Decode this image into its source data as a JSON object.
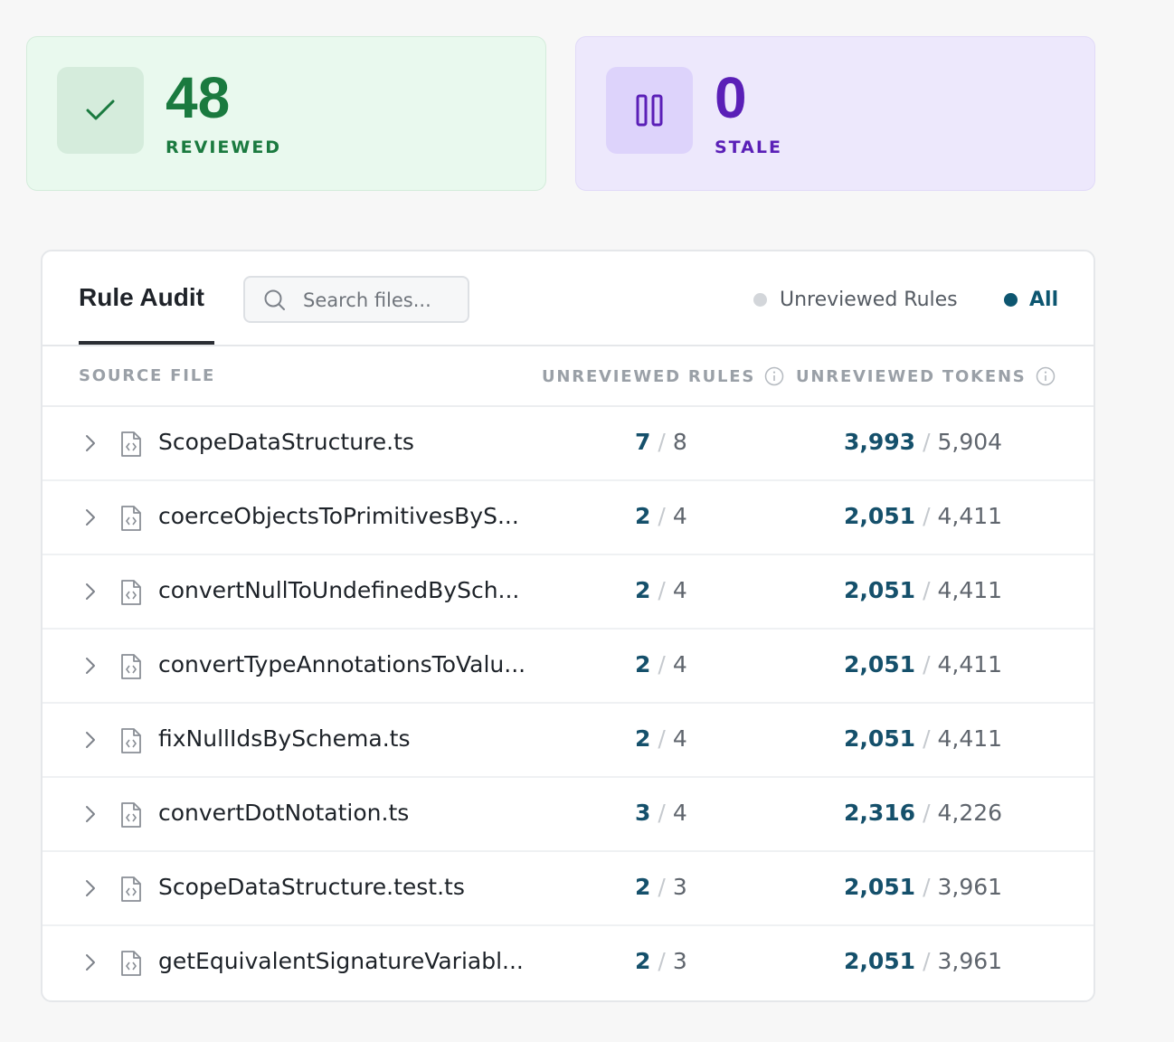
{
  "stats": {
    "reviewed": {
      "value": "48",
      "label": "REVIEWED",
      "icon": "check-icon",
      "color": "#1a7a3f"
    },
    "stale": {
      "value": "0",
      "label": "STALE",
      "icon": "pause-icon",
      "color": "#5a1fb7"
    }
  },
  "audit": {
    "tab_title": "Rule Audit",
    "search": {
      "placeholder": "Search files...",
      "value": ""
    },
    "filters": {
      "unreviewed": {
        "label": "Unreviewed Rules",
        "active": false
      },
      "all": {
        "label": "All",
        "active": true
      }
    },
    "columns": {
      "source": "SOURCE FILE",
      "rules": "UNREVIEWED RULES",
      "tokens": "UNREVIEWED TOKENS"
    },
    "rows": [
      {
        "file": "ScopeDataStructure.ts",
        "rules": "7",
        "rules_total": "8",
        "tokens": "3,993",
        "tokens_total": "5,904"
      },
      {
        "file": "coerceObjectsToPrimitivesByS...",
        "rules": "2",
        "rules_total": "4",
        "tokens": "2,051",
        "tokens_total": "4,411"
      },
      {
        "file": "convertNullToUndefinedBySch...",
        "rules": "2",
        "rules_total": "4",
        "tokens": "2,051",
        "tokens_total": "4,411"
      },
      {
        "file": "convertTypeAnnotationsToValu...",
        "rules": "2",
        "rules_total": "4",
        "tokens": "2,051",
        "tokens_total": "4,411"
      },
      {
        "file": "fixNullIdsBySchema.ts",
        "rules": "2",
        "rules_total": "4",
        "tokens": "2,051",
        "tokens_total": "4,411"
      },
      {
        "file": "convertDotNotation.ts",
        "rules": "3",
        "rules_total": "4",
        "tokens": "2,316",
        "tokens_total": "4,226"
      },
      {
        "file": "ScopeDataStructure.test.ts",
        "rules": "2",
        "rules_total": "3",
        "tokens": "2,051",
        "tokens_total": "3,961"
      },
      {
        "file": "getEquivalentSignatureVariabl...",
        "rules": "2",
        "rules_total": "3",
        "tokens": "2,051",
        "tokens_total": "3,961"
      }
    ]
  }
}
